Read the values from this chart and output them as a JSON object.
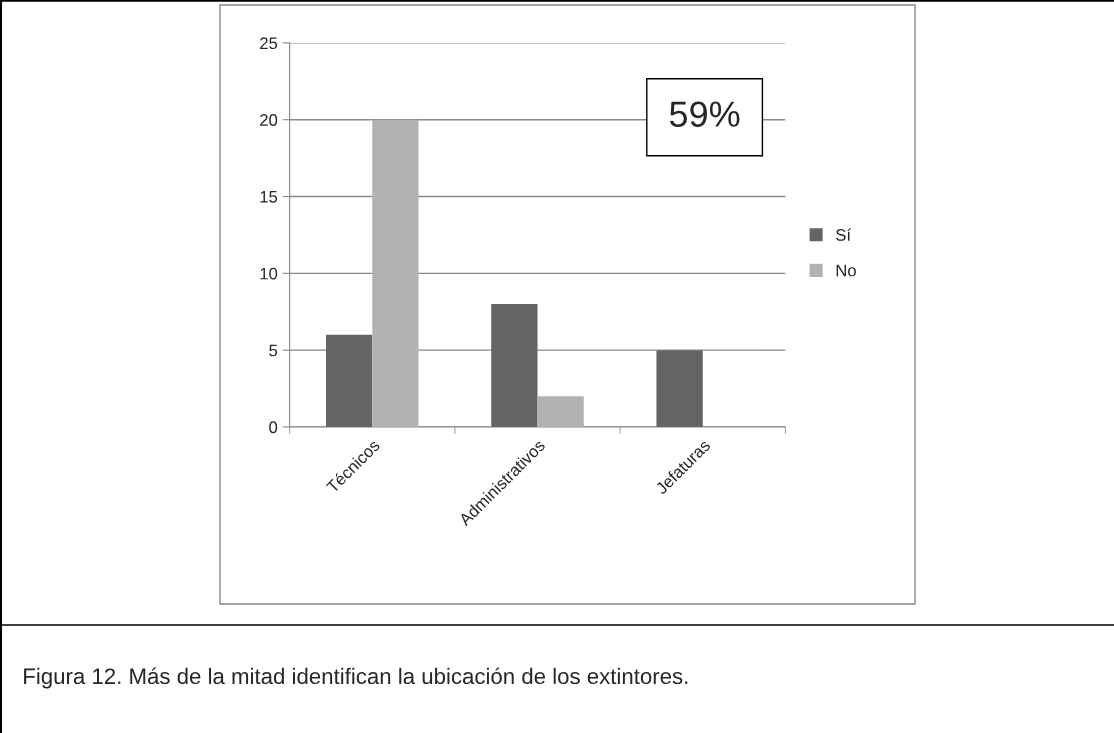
{
  "chart_data": {
    "type": "bar",
    "categories": [
      "Técnicos",
      "Administrativos",
      "Jefaturas"
    ],
    "series": [
      {
        "name": "Sí",
        "color": "#646464",
        "values": [
          6,
          8,
          5
        ]
      },
      {
        "name": "No",
        "color": "#b2b2b2",
        "values": [
          20,
          2,
          null
        ]
      }
    ],
    "ylim": [
      0,
      25
    ],
    "yticks": [
      0,
      5,
      10,
      15,
      20,
      25
    ],
    "grid": "y",
    "legend": "right",
    "annotations": [
      "59%",
      "Figura 12. Más de la mitad identifican la ubicación de los extintores."
    ]
  }
}
